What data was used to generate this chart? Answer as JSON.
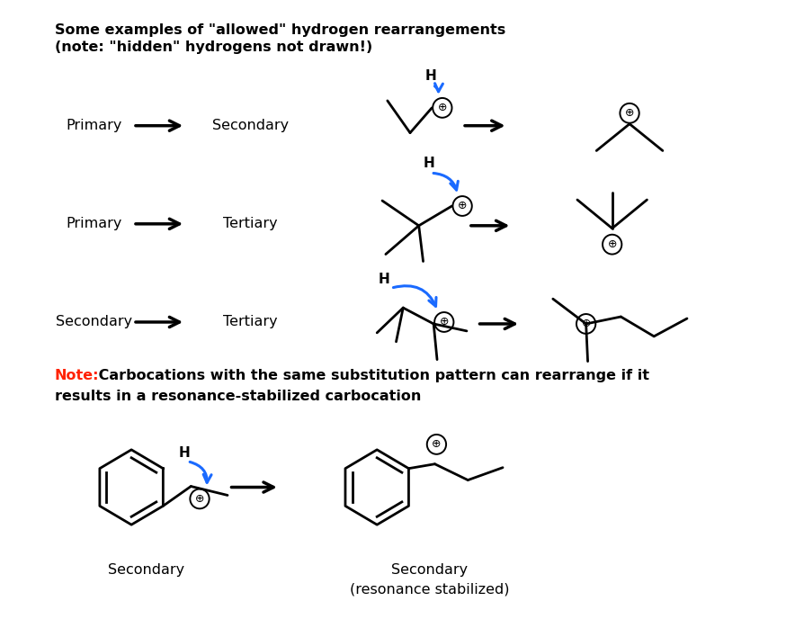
{
  "title_line1": "Some examples of \"allowed\" hydrogen rearrangements",
  "title_line2": "(note: \"hidden\" hydrogens not drawn!)",
  "row1_left": "Primary",
  "row1_right": "Secondary",
  "row2_left": "Primary",
  "row2_right": "Tertiary",
  "row3_left": "Secondary",
  "row3_right": "Tertiary",
  "bottom_left_label": "Secondary",
  "bottom_right_label1": "Secondary",
  "bottom_right_label2": "(resonance stabilized)",
  "note_red": "Note:",
  "note_black": " Carbocations with the same substitution pattern can rearrange if it",
  "note_line2": "results in a resonance-stabilized carbocation",
  "bg_color": "#ffffff",
  "text_color": "#000000",
  "blue_color": "#1a6aff",
  "note_color": "#ff2200",
  "bond_lw": 2.0,
  "circle_r": 0.11
}
